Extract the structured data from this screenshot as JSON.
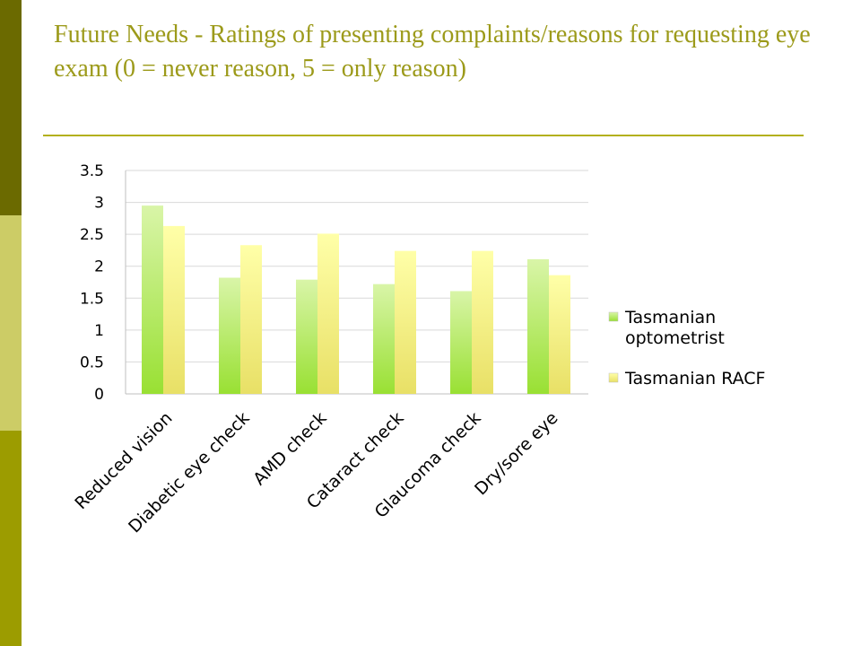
{
  "slide": {
    "title": "Future Needs - Ratings of presenting complaints/reasons for requesting eye exam (0 = never reason, 5 = only reason)",
    "colors": {
      "title_text": "#9c9a1a",
      "rule": "#b3b01c",
      "side_dark": "#6b6a00",
      "side_light": "#cccc66",
      "side_mid": "#9c9c00"
    }
  },
  "chart_data": {
    "type": "bar",
    "categories": [
      "Reduced vision",
      "Diabetic eye check",
      "AMD check",
      "Cataract check",
      "Glaucoma check",
      "Dry/sore eye"
    ],
    "series": [
      {
        "name": "Tasmanian optometrist",
        "values": [
          2.95,
          1.82,
          1.79,
          1.72,
          1.61,
          2.11
        ],
        "color": "#99e033"
      },
      {
        "name": "Tasmanian RACF",
        "values": [
          2.63,
          2.33,
          2.51,
          2.24,
          2.24,
          1.86
        ],
        "color": "#e8e066"
      }
    ],
    "ylim": [
      0,
      3.5
    ],
    "yticks": [
      "0",
      "0.5",
      "1",
      "1.5",
      "2",
      "2.5",
      "3",
      "3.5"
    ],
    "grid": true,
    "legend_position": "right",
    "legend_lines": [
      [
        "Tasmanian",
        "optometrist"
      ],
      [
        "Tasmanian RACF"
      ]
    ]
  }
}
